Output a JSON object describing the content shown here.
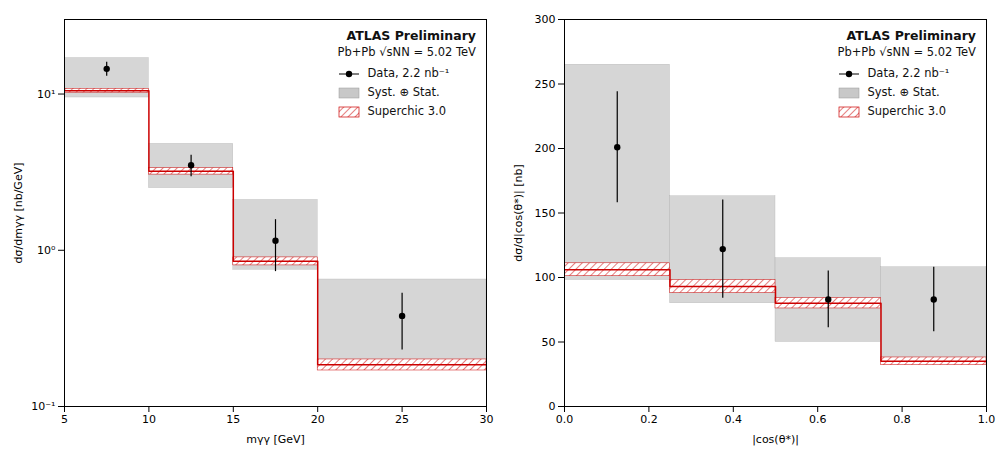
{
  "chart_data": [
    {
      "type": "step",
      "xlabel": "mγγ [GeV]",
      "ylabel": "dσ/dmγγ [nb/GeV]",
      "annotations": [
        "ATLAS Preliminary",
        "Pb+Pb √sNN = 5.02 TeV"
      ],
      "legend": "upper right",
      "log": "y",
      "xlim": [
        5,
        30
      ],
      "ylim": [
        0.1,
        30
      ],
      "xticks": [
        5,
        10,
        15,
        20,
        25,
        30
      ],
      "yticks": [
        {
          "value": 0.1,
          "label": "10⁻¹"
        },
        {
          "value": 1,
          "label": "10⁰"
        },
        {
          "value": 10,
          "label": "10¹"
        }
      ],
      "bins": [
        5,
        10,
        15,
        20,
        30
      ],
      "series": [
        {
          "name": "Data, 2.2 nb⁻¹",
          "type": "errorbar",
          "color": "black",
          "marker": "o",
          "x": [
            7.5,
            12.5,
            17.5,
            25.0
          ],
          "values": [
            14.5,
            3.5,
            1.15,
            0.38
          ],
          "error_lo": [
            1.5,
            0.55,
            0.42,
            0.15
          ],
          "error_hi": [
            1.5,
            0.55,
            0.42,
            0.15
          ]
        },
        {
          "name": "Syst. ⊕ Stat.",
          "type": "band",
          "color": "#c8c8c8",
          "lo": [
            9.5,
            2.5,
            0.75,
            0.175
          ],
          "hi": [
            17.0,
            4.8,
            2.1,
            0.65
          ]
        },
        {
          "name": "Superchic 3.0",
          "type": "step",
          "color": "#cc0000",
          "values": [
            10.5,
            3.2,
            0.85,
            0.185
          ],
          "lo": [
            10.2,
            3.05,
            0.8,
            0.17
          ],
          "hi": [
            10.8,
            3.35,
            0.9,
            0.2
          ]
        }
      ]
    },
    {
      "type": "step",
      "xlabel": "|cos(θ*)|",
      "ylabel": "dσ/d|cos(θ*)| [nb]",
      "annotations": [
        "ATLAS Preliminary",
        "Pb+Pb √sNN = 5.02 TeV"
      ],
      "legend": "upper right",
      "xlim": [
        0,
        1
      ],
      "ylim": [
        0,
        300
      ],
      "xticks": [
        {
          "value": 0,
          "label": "0.0"
        },
        0.2,
        0.4,
        0.6,
        0.8,
        {
          "value": 1.0,
          "label": "1.0"
        }
      ],
      "yticks": [
        0,
        50,
        100,
        150,
        200,
        250,
        300
      ],
      "bins": [
        0,
        0.25,
        0.5,
        0.75,
        1.0
      ],
      "series": [
        {
          "name": "Data, 2.2 nb⁻¹",
          "type": "errorbar",
          "color": "black",
          "marker": "o",
          "x": [
            0.125,
            0.375,
            0.625,
            0.875
          ],
          "values": [
            201,
            122,
            83,
            83
          ],
          "error_lo": [
            43,
            38,
            22,
            25
          ],
          "error_hi": [
            43,
            38,
            22,
            25
          ]
        },
        {
          "name": "Syst. ⊕ Stat.",
          "type": "band",
          "color": "#c8c8c8",
          "lo": [
            98,
            80,
            50,
            35
          ],
          "hi": [
            265,
            163,
            115,
            108
          ]
        },
        {
          "name": "Superchic 3.0",
          "type": "step",
          "color": "#cc0000",
          "values": [
            106,
            93,
            80,
            35
          ],
          "lo": [
            101,
            88,
            76,
            32
          ],
          "hi": [
            111,
            98,
            84,
            38
          ]
        }
      ]
    }
  ]
}
